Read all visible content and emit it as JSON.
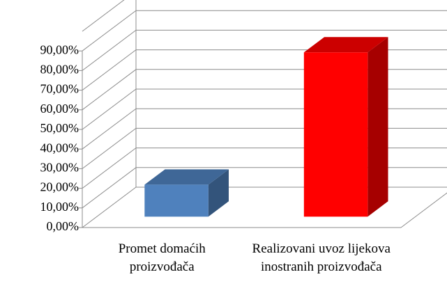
{
  "chart_data": {
    "type": "bar3d",
    "categories": [
      "Promet domaćih proizvođača",
      "Realizovani uvoz lijekova inostranih proizvođača"
    ],
    "values": [
      16.3,
      83.7
    ],
    "colors": [
      "#4f81bd",
      "#ff0000"
    ],
    "ylim": [
      0,
      100
    ],
    "yticks": [
      {
        "value": 0,
        "label": "0,00%"
      },
      {
        "value": 10,
        "label": "10,00%"
      },
      {
        "value": 20,
        "label": "20,00%"
      },
      {
        "value": 30,
        "label": "30,00%"
      },
      {
        "value": 40,
        "label": "40,00%"
      },
      {
        "value": 50,
        "label": "50,00%"
      },
      {
        "value": 60,
        "label": "60,00%"
      },
      {
        "value": 70,
        "label": "70,00%"
      },
      {
        "value": 80,
        "label": "80,00%"
      },
      {
        "value": 90,
        "label": "90,00%"
      }
    ],
    "grid": true
  }
}
